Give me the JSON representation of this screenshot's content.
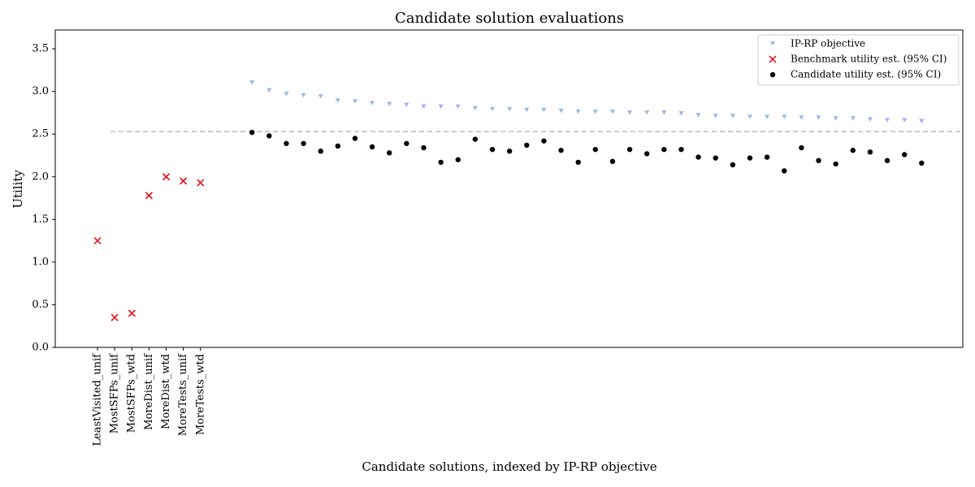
{
  "chart_data": {
    "type": "scatter",
    "title": "Candidate solution evaluations",
    "x_label": "Candidate solutions, indexed by IP-RP objective",
    "y_label": "Utility",
    "xlim": [
      -2.46,
      50.4
    ],
    "ylim": [
      0,
      3.72
    ],
    "xticks": [
      {
        "value": 0,
        "label": "LeastVisited_unif"
      },
      {
        "value": 1,
        "label": "MostSFPs_unif"
      },
      {
        "value": 2,
        "label": "MostSFPs_wtd"
      },
      {
        "value": 3,
        "label": "MoreDist_unif"
      },
      {
        "value": 4,
        "label": "MoreDist_wtd"
      },
      {
        "value": 5,
        "label": "MoreTests_unif"
      },
      {
        "value": 6,
        "label": "MoreTests_wtd"
      }
    ],
    "yticks": [
      {
        "value": 0,
        "label": "0.0"
      },
      0.5,
      {
        "value": 1,
        "label": "1.0"
      },
      1.5,
      {
        "value": 2,
        "label": "2.0"
      },
      2.5,
      {
        "value": 3,
        "label": "3.0"
      },
      3.5
    ],
    "hline": 2.53,
    "legend": "upper right",
    "series": [
      {
        "name": "IP-RP objective",
        "color": "#9db6ea",
        "marker": "triangle-down",
        "x": [
          9,
          10,
          11,
          12,
          13,
          14,
          15,
          16,
          17,
          18,
          19,
          20,
          21,
          22,
          23,
          24,
          25,
          26,
          27,
          28,
          29,
          30,
          31,
          32,
          33,
          34,
          35,
          36,
          37,
          38,
          39,
          40,
          41,
          42,
          43,
          44,
          45,
          46,
          47,
          48
        ],
        "values": [
          3.1,
          3.01,
          2.97,
          2.95,
          2.94,
          2.89,
          2.88,
          2.86,
          2.85,
          2.84,
          2.82,
          2.82,
          2.82,
          2.8,
          2.79,
          2.79,
          2.78,
          2.78,
          2.77,
          2.76,
          2.76,
          2.76,
          2.75,
          2.75,
          2.75,
          2.74,
          2.72,
          2.71,
          2.71,
          2.7,
          2.7,
          2.7,
          2.69,
          2.69,
          2.68,
          2.68,
          2.67,
          2.66,
          2.66,
          2.65
        ]
      },
      {
        "name": "Benchmark utility est. (95% CI)",
        "color": "#e8000b",
        "marker": "x",
        "x": [
          0,
          1,
          2,
          3,
          4,
          5,
          6
        ],
        "values": [
          1.25,
          0.35,
          0.4,
          1.78,
          2.0,
          1.95,
          1.93
        ]
      },
      {
        "name": "Candidate utility est. (95% CI)",
        "color": "#000000",
        "marker": "circle",
        "x": [
          9,
          10,
          11,
          12,
          13,
          14,
          15,
          16,
          17,
          18,
          19,
          20,
          21,
          22,
          23,
          24,
          25,
          26,
          27,
          28,
          29,
          30,
          31,
          32,
          33,
          34,
          35,
          36,
          37,
          38,
          39,
          40,
          41,
          42,
          43,
          44,
          45,
          46,
          47,
          48
        ],
        "values": [
          2.52,
          2.48,
          2.39,
          2.39,
          2.3,
          2.36,
          2.45,
          2.35,
          2.28,
          2.39,
          2.34,
          2.17,
          2.2,
          2.44,
          2.32,
          2.3,
          2.37,
          2.42,
          2.31,
          2.17,
          2.32,
          2.18,
          2.32,
          2.27,
          2.32,
          2.32,
          2.23,
          2.22,
          2.14,
          2.22,
          2.23,
          2.07,
          2.34,
          2.19,
          2.15,
          2.31,
          2.29,
          2.19,
          2.26,
          2.16
        ]
      }
    ]
  }
}
